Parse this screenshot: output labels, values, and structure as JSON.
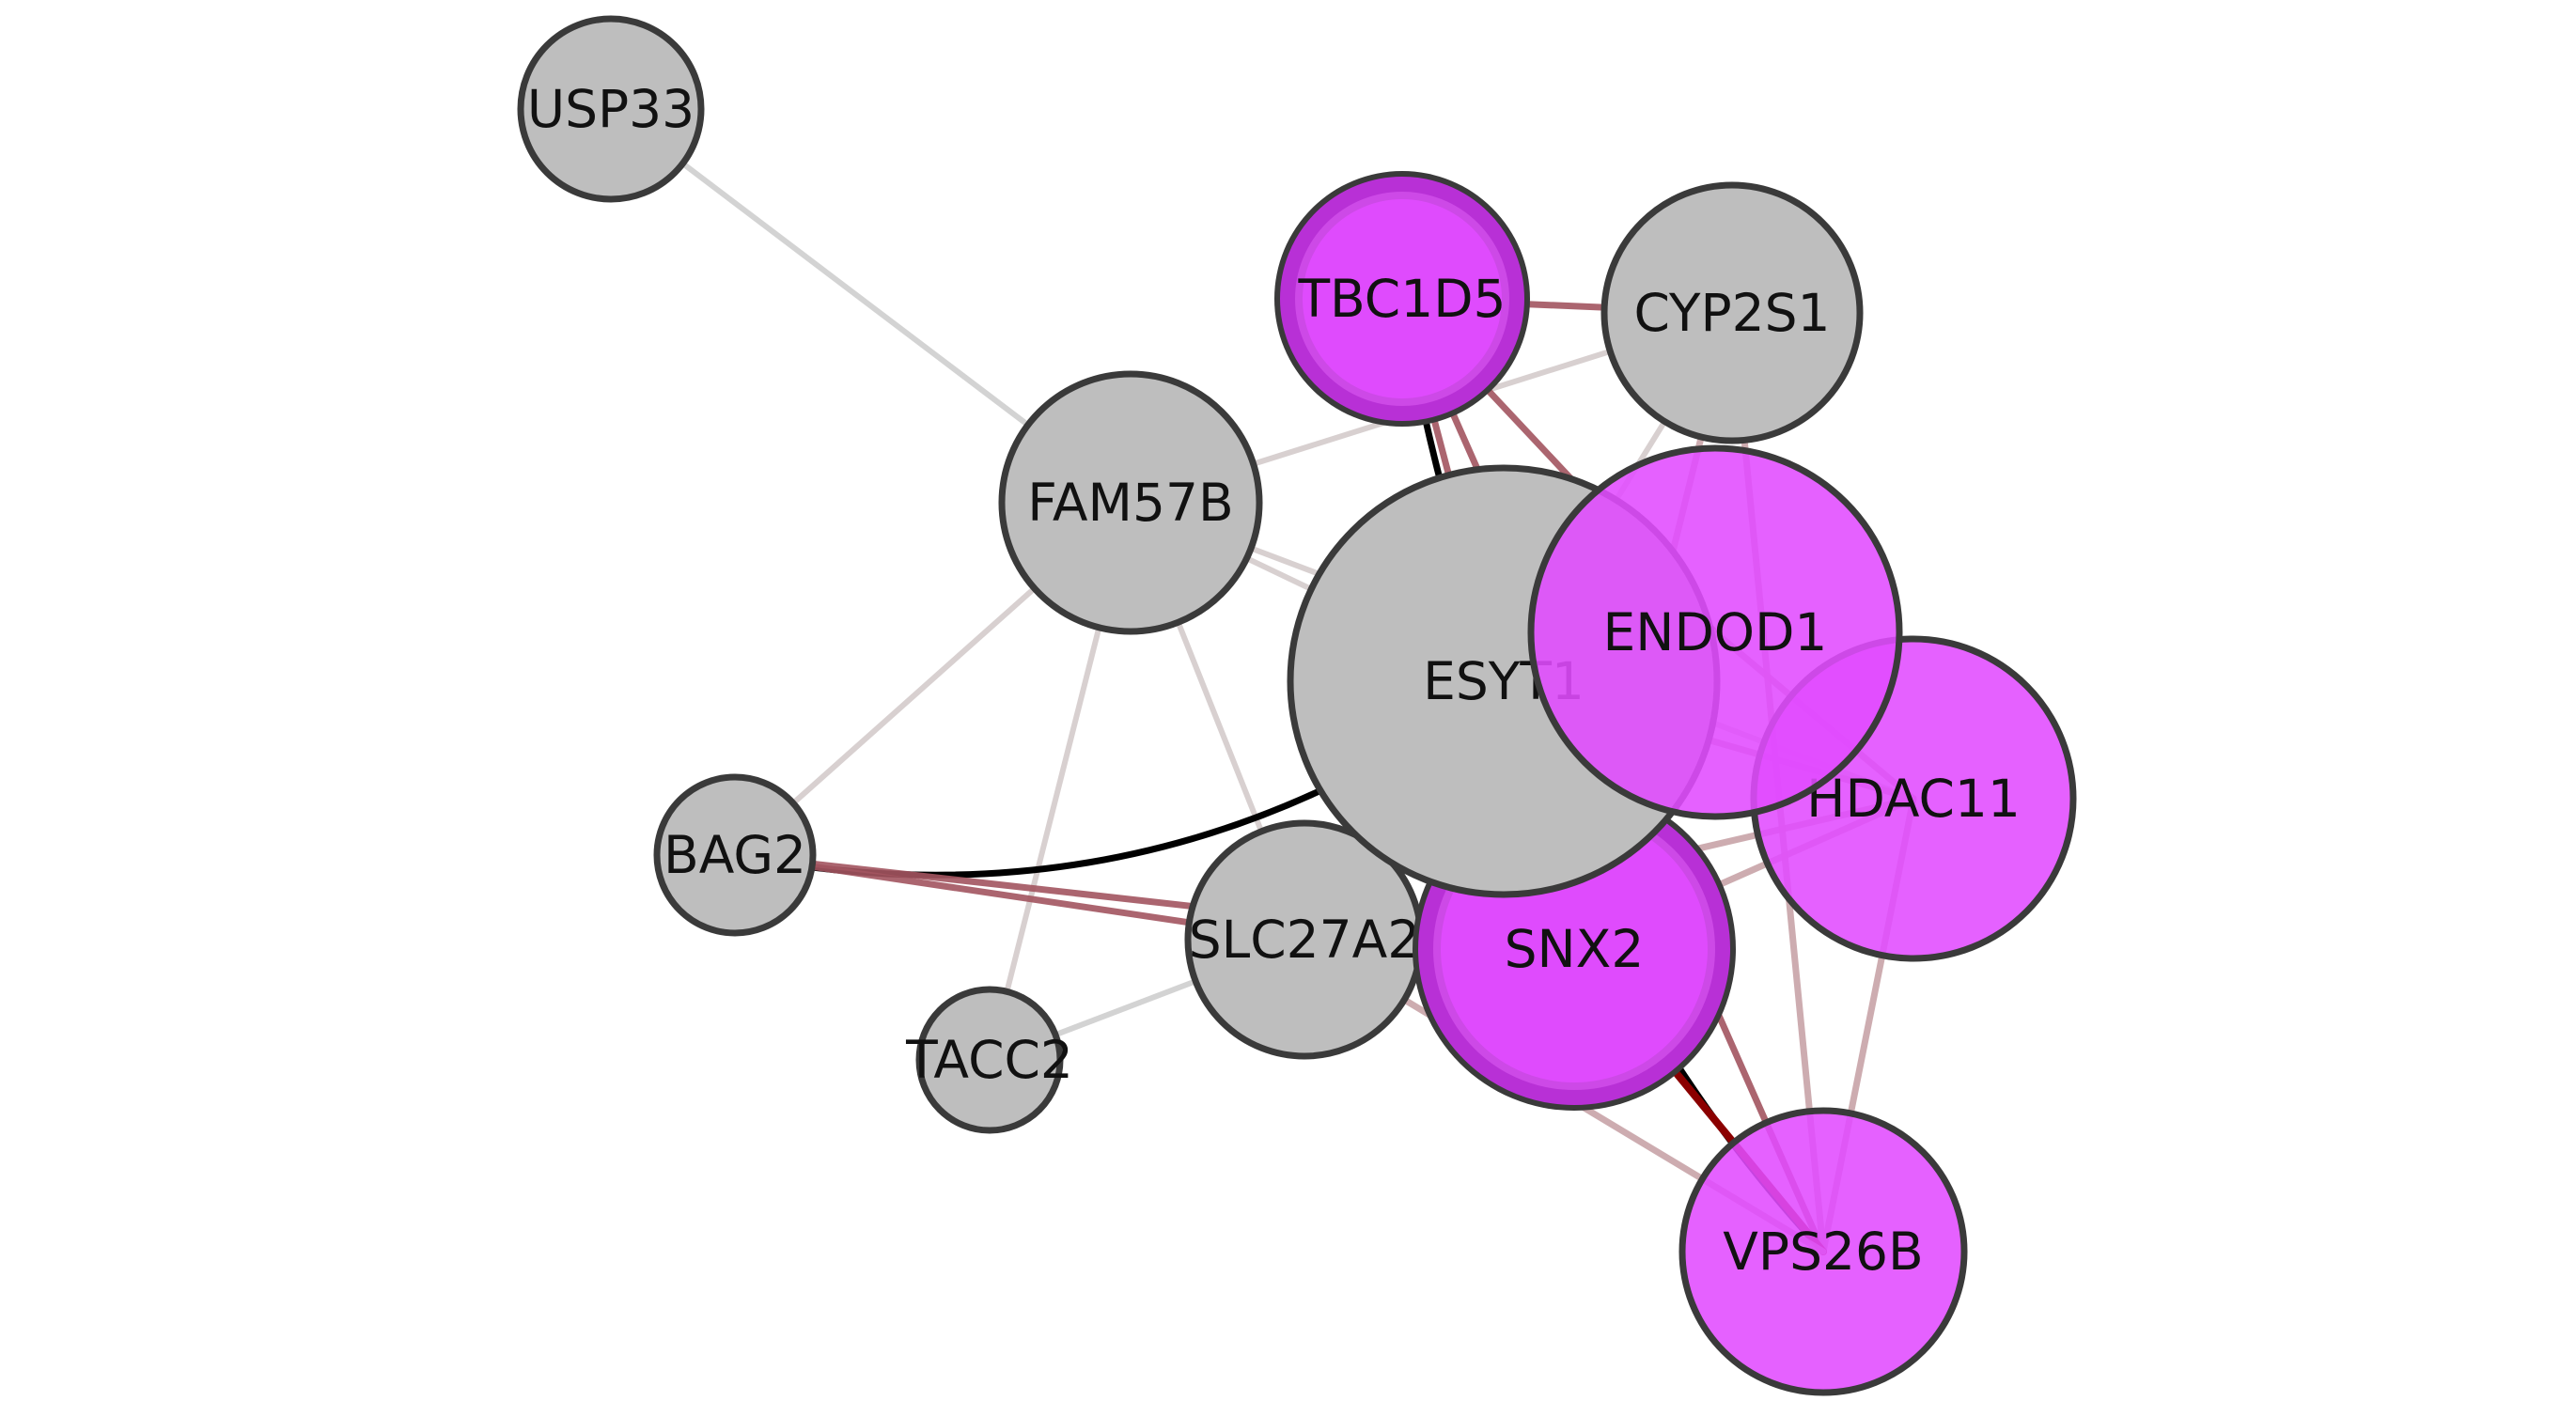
{
  "network": {
    "colors": {
      "gray_fill": "#bebebe",
      "magenta_fill": "#e14bff",
      "magenta_ring": "#b830d6",
      "node_outline": "#3a3a3a",
      "edge_black": "#000000",
      "edge_dark_red": "#8b0000",
      "edge_brown": "#a35560",
      "edge_pink": "#c8a4a8",
      "edge_light": "#d4cccc",
      "edge_gray": "#cfcfcf"
    },
    "nodes": [
      {
        "id": "USP33",
        "label": "USP33",
        "style": "gray",
        "thick_outline": false
      },
      {
        "id": "TBC1D5",
        "label": "TBC1D5",
        "style": "magenta",
        "thick_outline": true
      },
      {
        "id": "CYP2S1",
        "label": "CYP2S1",
        "style": "gray",
        "thick_outline": false
      },
      {
        "id": "FAM57B",
        "label": "FAM57B",
        "style": "gray",
        "thick_outline": false
      },
      {
        "id": "ESYT1",
        "label": "ESYT1",
        "style": "gray",
        "thick_outline": false
      },
      {
        "id": "ENDOD1",
        "label": "ENDOD1",
        "style": "magenta",
        "thick_outline": false
      },
      {
        "id": "HDAC11",
        "label": "HDAC11",
        "style": "magenta",
        "thick_outline": false
      },
      {
        "id": "BAG2",
        "label": "BAG2",
        "style": "gray",
        "thick_outline": false
      },
      {
        "id": "SLC27A2",
        "label": "SLC27A2",
        "style": "gray",
        "thick_outline": false
      },
      {
        "id": "SNX2",
        "label": "SNX2",
        "style": "magenta",
        "thick_outline": true
      },
      {
        "id": "TACC2",
        "label": "TACC2",
        "style": "gray",
        "thick_outline": false
      },
      {
        "id": "VPS26B",
        "label": "VPS26B",
        "style": "magenta",
        "thick_outline": false
      }
    ],
    "edges": [
      {
        "source": "USP33",
        "target": "FAM57B",
        "color": "edge_gray"
      },
      {
        "source": "FAM57B",
        "target": "CYP2S1",
        "color": "edge_light"
      },
      {
        "source": "FAM57B",
        "target": "ESYT1",
        "color": "edge_light"
      },
      {
        "source": "FAM57B",
        "target": "BAG2",
        "color": "edge_light"
      },
      {
        "source": "FAM57B",
        "target": "TACC2",
        "color": "edge_light"
      },
      {
        "source": "FAM57B",
        "target": "SLC27A2",
        "color": "edge_light"
      },
      {
        "source": "FAM57B",
        "target": "HDAC11",
        "color": "edge_light"
      },
      {
        "source": "TBC1D5",
        "target": "CYP2S1",
        "color": "edge_brown"
      },
      {
        "source": "TBC1D5",
        "target": "ESYT1",
        "color": "edge_black"
      },
      {
        "source": "TBC1D5",
        "target": "ENDOD1",
        "color": "edge_brown"
      },
      {
        "source": "TBC1D5",
        "target": "SNX2",
        "color": "edge_brown"
      },
      {
        "source": "TBC1D5",
        "target": "VPS26B",
        "color": "edge_brown"
      },
      {
        "source": "CYP2S1",
        "target": "ESYT1",
        "color": "edge_light"
      },
      {
        "source": "CYP2S1",
        "target": "VPS26B",
        "color": "edge_pink"
      },
      {
        "source": "CYP2S1",
        "target": "SNX2",
        "color": "edge_pink"
      },
      {
        "source": "ESYT1",
        "target": "BAG2",
        "color": "edge_black"
      },
      {
        "source": "ESYT1",
        "target": "ENDOD1",
        "color": "edge_pink"
      },
      {
        "source": "ESYT1",
        "target": "HDAC11",
        "color": "edge_pink"
      },
      {
        "source": "ESYT1",
        "target": "VPS26B",
        "color": "edge_black"
      },
      {
        "source": "ENDOD1",
        "target": "HDAC11",
        "color": "edge_pink"
      },
      {
        "source": "ENDOD1",
        "target": "SNX2",
        "color": "edge_pink"
      },
      {
        "source": "HDAC11",
        "target": "SNX2",
        "color": "edge_pink"
      },
      {
        "source": "HDAC11",
        "target": "VPS26B",
        "color": "edge_pink"
      },
      {
        "source": "HDAC11",
        "target": "SLC27A2",
        "color": "edge_pink"
      },
      {
        "source": "SNX2",
        "target": "VPS26B",
        "color": "edge_dark_red"
      },
      {
        "source": "SLC27A2",
        "target": "VPS26B",
        "color": "edge_pink"
      },
      {
        "source": "BAG2",
        "target": "SNX2",
        "color": "edge_brown"
      },
      {
        "source": "BAG2",
        "target": "SLC27A2",
        "color": "edge_brown"
      },
      {
        "source": "TACC2",
        "target": "SLC27A2",
        "color": "edge_gray"
      }
    ]
  }
}
